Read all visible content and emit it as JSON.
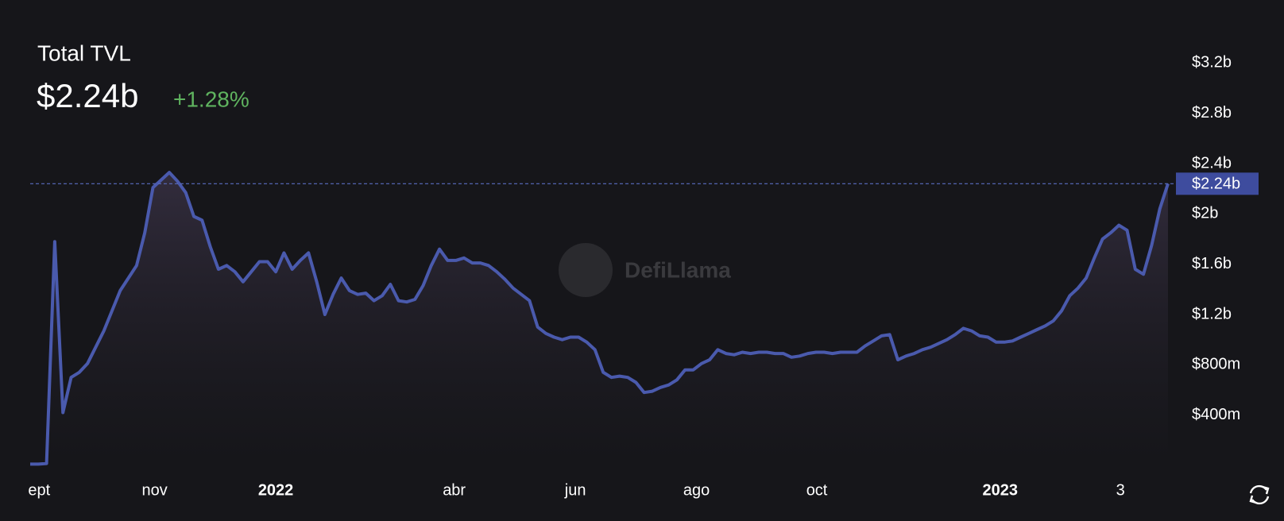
{
  "chart_data": {
    "type": "line",
    "title": "Total TVL",
    "current_value": 2240000000.0,
    "current_value_label": "$2.24b",
    "change": "+1.28%",
    "watermark": "DefiLlama",
    "xlim": [
      0,
      139
    ],
    "ylim": [
      0,
      3600000000.0
    ],
    "xticks": [
      {
        "value": 1.1,
        "label": "ept"
      },
      {
        "value": 15.2,
        "label": "nov"
      },
      {
        "value": 30,
        "label": "2022"
      },
      {
        "value": 51.8,
        "label": "abr"
      },
      {
        "value": 66.6,
        "label": "jun"
      },
      {
        "value": 81.4,
        "label": "ago"
      },
      {
        "value": 96.1,
        "label": "oct"
      },
      {
        "value": 118.5,
        "label": "2023"
      },
      {
        "value": 133.2,
        "label": "3"
      }
    ],
    "yticks": [
      {
        "value": 400000000.0,
        "label": "$400m"
      },
      {
        "value": 800000000.0,
        "label": "$800m"
      },
      {
        "value": 1200000000.0,
        "label": "$1.2b"
      },
      {
        "value": 1600000000.0,
        "label": "$1.6b"
      },
      {
        "value": 2000000000.0,
        "label": "$2b"
      },
      {
        "value": 2400000000.0,
        "label": "$2.4b"
      },
      {
        "value": 2800000000.0,
        "label": "$2.8b"
      },
      {
        "value": 3200000000.0,
        "label": "$3.2b"
      }
    ],
    "series": [
      {
        "color": "#4a5aad",
        "values": [
          10000000.0,
          10000000.0,
          15000000.0,
          1780000000.0,
          420000000.0,
          700000000.0,
          740000000.0,
          810000000.0,
          940000000.0,
          1070000000.0,
          1230000000.0,
          1390000000.0,
          1490000000.0,
          1590000000.0,
          1850000000.0,
          2210000000.0,
          2270000000.0,
          2330000000.0,
          2260000000.0,
          2170000000.0,
          1980000000.0,
          1950000000.0,
          1740000000.0,
          1560000000.0,
          1590000000.0,
          1540000000.0,
          1460000000.0,
          1540000000.0,
          1620000000.0,
          1620000000.0,
          1540000000.0,
          1690000000.0,
          1560000000.0,
          1630000000.0,
          1690000000.0,
          1460000000.0,
          1200000000.0,
          1360000000.0,
          1490000000.0,
          1390000000.0,
          1360000000.0,
          1370000000.0,
          1310000000.0,
          1350000000.0,
          1440000000.0,
          1310000000.0,
          1300000000.0,
          1320000000.0,
          1430000000.0,
          1590000000.0,
          1720000000.0,
          1630000000.0,
          1630000000.0,
          1650000000.0,
          1610000000.0,
          1610000000.0,
          1590000000.0,
          1540000000.0,
          1480000000.0,
          1410000000.0,
          1360000000.0,
          1310000000.0,
          1100000000.0,
          1050000000.0,
          1020000000.0,
          1000000000.0,
          1020000000.0,
          1020000000.0,
          980000000.0,
          920000000.0,
          740000000.0,
          700000000.0,
          710000000.0,
          700000000.0,
          660000000.0,
          580000000.0,
          590000000.0,
          620000000.0,
          640000000.0,
          680000000.0,
          760000000.0,
          760000000.0,
          810000000.0,
          840000000.0,
          920000000.0,
          890000000.0,
          880000000.0,
          900000000.0,
          890000000.0,
          900000000.0,
          900000000.0,
          890000000.0,
          890000000.0,
          860000000.0,
          870000000.0,
          890000000.0,
          900000000.0,
          900000000.0,
          890000000.0,
          900000000.0,
          900000000.0,
          900000000.0,
          950000000.0,
          990000000.0,
          1030000000.0,
          1040000000.0,
          840000000.0,
          870000000.0,
          890000000.0,
          920000000.0,
          940000000.0,
          970000000.0,
          1000000000.0,
          1040000000.0,
          1090000000.0,
          1070000000.0,
          1030000000.0,
          1020000000.0,
          980000000.0,
          980000000.0,
          990000000.0,
          1020000000.0,
          1050000000.0,
          1080000000.0,
          1110000000.0,
          1150000000.0,
          1230000000.0,
          1350000000.0,
          1410000000.0,
          1490000000.0,
          1650000000.0,
          1800000000.0,
          1850000000.0,
          1910000000.0,
          1870000000.0,
          1560000000.0,
          1520000000.0,
          1750000000.0,
          2040000000.0,
          2240000000.0
        ]
      }
    ]
  }
}
